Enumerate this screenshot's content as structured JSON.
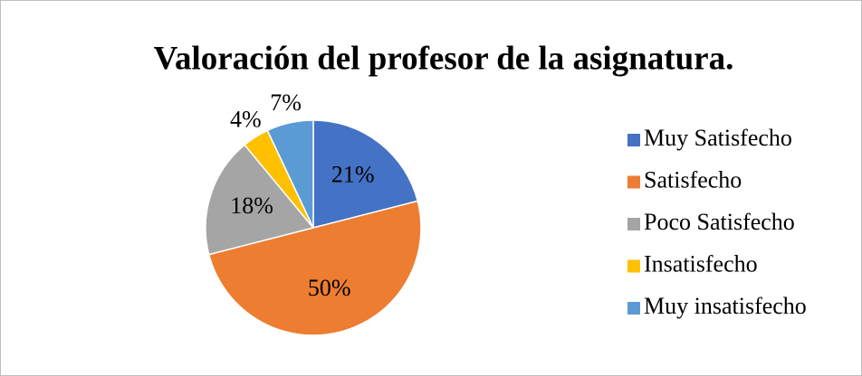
{
  "chart_data": {
    "type": "pie",
    "title": "Valoración del profesor de la asignatura.",
    "categories": [
      "Muy Satisfecho",
      "Satisfecho",
      "Poco Satisfecho",
      "Insatisfecho",
      "Muy insatisfecho"
    ],
    "values": [
      21,
      50,
      18,
      4,
      7
    ],
    "value_labels": [
      "21%",
      "50%",
      "18%",
      "4%",
      "7%"
    ],
    "colors": [
      "#4472c4",
      "#ed7d31",
      "#a5a5a5",
      "#ffc000",
      "#5b9bd5"
    ],
    "legend": "right"
  }
}
